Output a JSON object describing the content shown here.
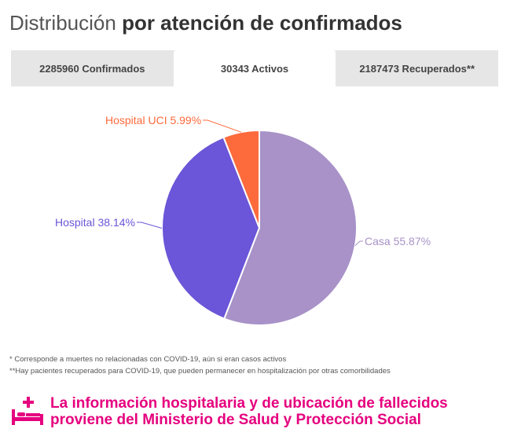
{
  "title": {
    "regular": "Distribución",
    "bold": "por atención de confirmados"
  },
  "tabs": [
    {
      "label": "2285960 Confirmados",
      "active": false
    },
    {
      "label": "30343 Activos",
      "active": true
    },
    {
      "label": "2187473 Recuperados**",
      "active": false
    }
  ],
  "chart_data": {
    "type": "pie",
    "slices": [
      {
        "label": "Casa 55.87%",
        "category": "Casa",
        "value": 55.87,
        "color": "#a892c8"
      },
      {
        "label": "Hospital 38.14%",
        "category": "Hospital",
        "value": 38.14,
        "color": "#6b55d8"
      },
      {
        "label": "Hospital UCI 5.99%",
        "category": "Hospital UCI",
        "value": 5.99,
        "color": "#fd6a3c"
      }
    ]
  },
  "footnotes": [
    "* Corresponde a muertes no relacionadas con COVID-19, aún si eran casos activos",
    "**Hay pacientes recuperados para COVID-19, que pueden permanecer en hospitalización por otras comorbilidades"
  ],
  "source_note": {
    "line1": "La información hospitalaria y de ubicación de fallecidos",
    "line2": "proviene del Ministerio de Salud y Protección Social",
    "icon": "hospital-bed-icon",
    "color": "#e5007e"
  }
}
